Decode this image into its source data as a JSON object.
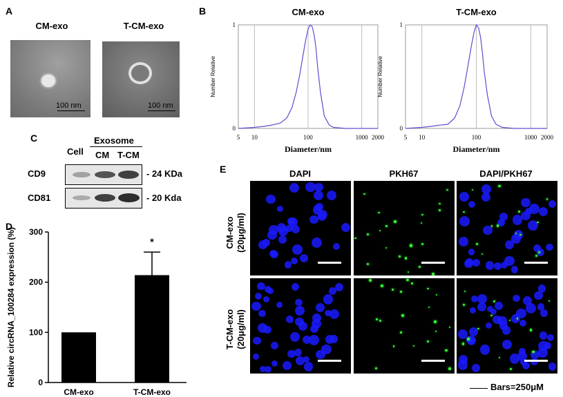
{
  "panels": {
    "A": {
      "label": "A",
      "titles": [
        "CM-exo",
        "T-CM-exo"
      ],
      "scale": "100 nm"
    },
    "B": {
      "label": "B"
    },
    "C": {
      "label": "C",
      "header": "Exosome",
      "lanes": [
        "Cell",
        "CM",
        "T-CM"
      ],
      "rows": [
        {
          "name": "CD9",
          "size": "- 24 KDa"
        },
        {
          "name": "CD81",
          "size": "- 20 Kda"
        }
      ]
    },
    "D": {
      "label": "D"
    },
    "E": {
      "label": "E",
      "cols": [
        "DAPI",
        "PKH67",
        "DAPI/PKH67"
      ],
      "rows": [
        "CM-exo",
        "T-CM-exo"
      ],
      "row_sub": "(20μg/ml)",
      "bars_note": "Bars=250μM",
      "colors": {
        "dapi": "#1a1aff",
        "pkh": "#33ff33"
      }
    }
  },
  "chart_data": [
    {
      "type": "line",
      "title": "CM-exo",
      "xlabel": "Diameter/nm",
      "ylabel": "Number Relative",
      "xscale": "log",
      "xlim": [
        5,
        2000
      ],
      "ylim": [
        0,
        1
      ],
      "xticks": [
        "5",
        "10",
        "100",
        "1000",
        "2000"
      ],
      "yticks": [
        "0",
        "1"
      ],
      "x": [
        5,
        10,
        15,
        20,
        30,
        40,
        50,
        60,
        70,
        80,
        90,
        100,
        110,
        120,
        130,
        140,
        150,
        170,
        200,
        250,
        300,
        500,
        1000,
        2000
      ],
      "y": [
        0,
        0.01,
        0.02,
        0.03,
        0.05,
        0.1,
        0.2,
        0.35,
        0.52,
        0.7,
        0.85,
        0.96,
        1.0,
        0.98,
        0.9,
        0.78,
        0.6,
        0.35,
        0.12,
        0.03,
        0.01,
        0,
        0,
        0
      ],
      "color": "#5a4fd0"
    },
    {
      "type": "line",
      "title": "T-CM-exo",
      "xlabel": "Diameter/nm",
      "ylabel": "Number Relative",
      "xscale": "log",
      "xlim": [
        5,
        2000
      ],
      "ylim": [
        0,
        1
      ],
      "xticks": [
        "5",
        "10",
        "100",
        "1000",
        "2000"
      ],
      "yticks": [
        "0",
        "1"
      ],
      "x": [
        5,
        10,
        15,
        20,
        30,
        40,
        50,
        60,
        70,
        80,
        90,
        100,
        110,
        120,
        130,
        140,
        160,
        190,
        230,
        300,
        500,
        1000,
        2000
      ],
      "y": [
        0,
        0.01,
        0.02,
        0.03,
        0.04,
        0.1,
        0.22,
        0.4,
        0.6,
        0.78,
        0.92,
        1.0,
        0.97,
        0.88,
        0.72,
        0.55,
        0.32,
        0.12,
        0.04,
        0.01,
        0,
        0,
        0
      ],
      "color": "#5a4fd0"
    },
    {
      "type": "bar",
      "title": "",
      "xlabel": "",
      "ylabel": "Relative circRNA_100284 expression (%)",
      "categories": [
        "CM-exo",
        "T-CM-exo"
      ],
      "values": [
        100,
        214
      ],
      "errors": [
        0,
        46
      ],
      "annotations": [
        "",
        "*"
      ],
      "ylim": [
        0,
        300
      ],
      "yticks": [
        "0",
        "100",
        "200",
        "300"
      ],
      "color": "#000000"
    }
  ]
}
